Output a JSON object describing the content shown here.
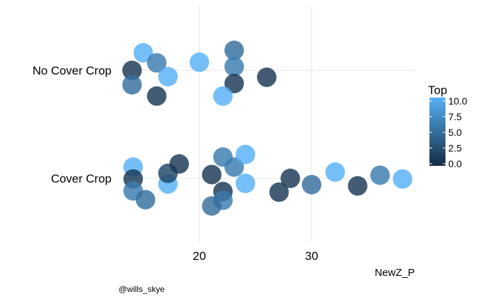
{
  "chart_data": {
    "type": "scatter",
    "xlabel": "NewZ_P",
    "ylabel": "",
    "x_ticks": [
      20,
      30
    ],
    "xlim": [
      8.5,
      39
    ],
    "categories": [
      "No Cover Crop",
      "Cover Crop"
    ],
    "legend": {
      "title": "Top",
      "ticks": [
        "10.0",
        "7.5",
        "5.0",
        "2.5",
        "0.0"
      ],
      "range": [
        0,
        10
      ],
      "low_color": "#132B43",
      "high_color": "#56B1F7",
      "placement": "right"
    },
    "caption": "@wills_skye",
    "points": [
      {
        "category": "No Cover Crop",
        "x": 15.0,
        "jitter": 0.28,
        "top": 10
      },
      {
        "category": "No Cover Crop",
        "x": 16.2,
        "jitter": 0.12,
        "top": 6
      },
      {
        "category": "No Cover Crop",
        "x": 14.0,
        "jitter": 0.0,
        "top": 1
      },
      {
        "category": "No Cover Crop",
        "x": 17.2,
        "jitter": -0.1,
        "top": 10
      },
      {
        "category": "No Cover Crop",
        "x": 14.0,
        "jitter": -0.23,
        "top": 5
      },
      {
        "category": "No Cover Crop",
        "x": 16.2,
        "jitter": -0.41,
        "top": 1
      },
      {
        "category": "No Cover Crop",
        "x": 20.0,
        "jitter": 0.13,
        "top": 10
      },
      {
        "category": "No Cover Crop",
        "x": 23.1,
        "jitter": 0.32,
        "top": 5
      },
      {
        "category": "No Cover Crop",
        "x": 23.1,
        "jitter": 0.06,
        "top": 6
      },
      {
        "category": "No Cover Crop",
        "x": 23.1,
        "jitter": -0.21,
        "top": 1
      },
      {
        "category": "No Cover Crop",
        "x": 22.1,
        "jitter": -0.41,
        "top": 10
      },
      {
        "category": "No Cover Crop",
        "x": 26.0,
        "jitter": -0.11,
        "top": 1
      },
      {
        "category": "Cover Crop",
        "x": 14.1,
        "jitter": 0.18,
        "top": 10
      },
      {
        "category": "Cover Crop",
        "x": 14.1,
        "jitter": -0.01,
        "top": 1
      },
      {
        "category": "Cover Crop",
        "x": 14.1,
        "jitter": -0.2,
        "top": 6
      },
      {
        "category": "Cover Crop",
        "x": 15.2,
        "jitter": -0.34,
        "top": 5
      },
      {
        "category": "Cover Crop",
        "x": 17.2,
        "jitter": -0.09,
        "top": 10
      },
      {
        "category": "Cover Crop",
        "x": 17.2,
        "jitter": 0.08,
        "top": 2
      },
      {
        "category": "Cover Crop",
        "x": 18.2,
        "jitter": 0.23,
        "top": 1
      },
      {
        "category": "Cover Crop",
        "x": 21.1,
        "jitter": 0.06,
        "top": 1
      },
      {
        "category": "Cover Crop",
        "x": 22.1,
        "jitter": 0.34,
        "top": 6
      },
      {
        "category": "Cover Crop",
        "x": 23.1,
        "jitter": 0.18,
        "top": 6
      },
      {
        "category": "Cover Crop",
        "x": 24.1,
        "jitter": 0.38,
        "top": 10
      },
      {
        "category": "Cover Crop",
        "x": 24.1,
        "jitter": -0.08,
        "top": 10
      },
      {
        "category": "Cover Crop",
        "x": 22.1,
        "jitter": -0.21,
        "top": 1
      },
      {
        "category": "Cover Crop",
        "x": 22.1,
        "jitter": -0.35,
        "top": 6
      },
      {
        "category": "Cover Crop",
        "x": 21.1,
        "jitter": -0.44,
        "top": 5
      },
      {
        "category": "Cover Crop",
        "x": 27.1,
        "jitter": -0.22,
        "top": 1
      },
      {
        "category": "Cover Crop",
        "x": 28.1,
        "jitter": 0.0,
        "top": 1
      },
      {
        "category": "Cover Crop",
        "x": 30.0,
        "jitter": -0.1,
        "top": 5
      },
      {
        "category": "Cover Crop",
        "x": 32.1,
        "jitter": 0.1,
        "top": 10
      },
      {
        "category": "Cover Crop",
        "x": 34.1,
        "jitter": -0.12,
        "top": 1
      },
      {
        "category": "Cover Crop",
        "x": 36.1,
        "jitter": 0.05,
        "top": 6
      },
      {
        "category": "Cover Crop",
        "x": 38.1,
        "jitter": -0.01,
        "top": 10
      }
    ]
  }
}
